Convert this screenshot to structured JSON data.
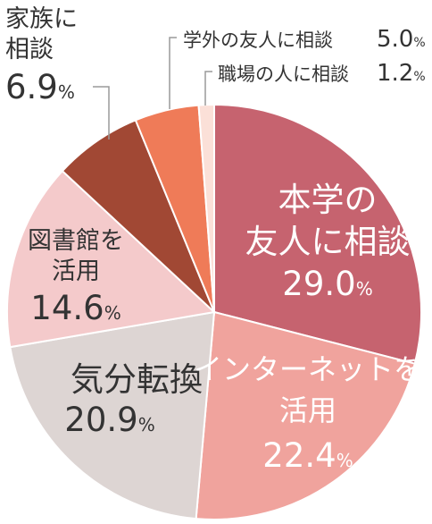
{
  "chart_data": {
    "type": "pie",
    "start": "12 o'clock",
    "direction": "clockwise",
    "slices": [
      {
        "label_lines": [
          "本学の",
          "友人に相談"
        ],
        "value": 29.0,
        "pct": "29.0",
        "color": "#c6636f",
        "text_color": "#ffffff"
      },
      {
        "label_lines": [
          "インターネットを",
          "活用"
        ],
        "value": 22.4,
        "pct": "22.4",
        "color": "#f0a39d",
        "text_color": "#ffffff"
      },
      {
        "label_lines": [
          "気分転換"
        ],
        "value": 20.9,
        "pct": "20.9",
        "color": "#ddd5d3",
        "text_color": "#333333"
      },
      {
        "label_lines": [
          "図書館を",
          "活用"
        ],
        "value": 14.6,
        "pct": "14.6",
        "color": "#f4cacb",
        "text_color": "#333333"
      },
      {
        "label_lines": [
          "家族に",
          "相談"
        ],
        "value": 6.9,
        "pct": "6.9",
        "color": "#a14834",
        "text_color": "#333333"
      },
      {
        "label_lines": [
          "学外の友人に相談"
        ],
        "value": 5.0,
        "pct": "5.0",
        "color": "#ef7b58",
        "text_color": "#333333"
      },
      {
        "label_lines": [
          "職場の人に相談"
        ],
        "value": 1.2,
        "pct": "1.2",
        "color": "#fbe0d8",
        "text_color": "#333333"
      }
    ],
    "unit": "%"
  }
}
